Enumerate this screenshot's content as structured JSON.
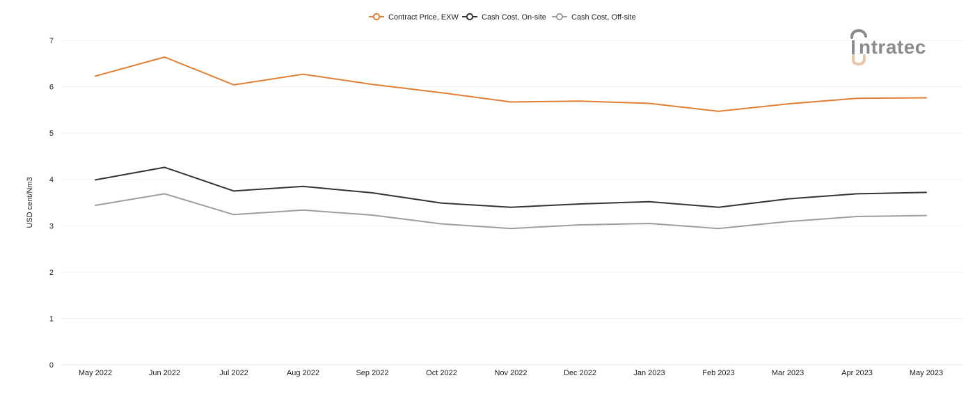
{
  "chart_data": {
    "type": "line",
    "ylabel": "USD cent/Nm3",
    "ylim": [
      0,
      7
    ],
    "yticks": [
      0,
      1,
      2,
      3,
      4,
      5,
      6,
      7
    ],
    "grid": true,
    "legend_position": "top-center",
    "categories": [
      "May 2022",
      "Jun 2022",
      "Jul 2022",
      "Aug 2022",
      "Sep 2022",
      "Oct 2022",
      "Nov 2022",
      "Dec 2022",
      "Jan 2023",
      "Feb 2023",
      "Mar 2023",
      "Apr 2023",
      "May 2023"
    ],
    "series": [
      {
        "name": "Contract Price, EXW",
        "color": "#E07F35",
        "values": [
          6.23,
          6.64,
          6.04,
          6.27,
          6.05,
          5.87,
          5.67,
          5.69,
          5.64,
          5.47,
          5.63,
          5.75,
          5.76
        ]
      },
      {
        "name": "Cash Cost, On-site",
        "color": "#333333",
        "values": [
          3.99,
          4.26,
          3.75,
          3.85,
          3.71,
          3.49,
          3.4,
          3.47,
          3.52,
          3.4,
          3.58,
          3.69,
          3.72
        ]
      },
      {
        "name": "Cash Cost, Off-site",
        "color": "#9E9E9E",
        "values": [
          3.44,
          3.69,
          3.24,
          3.34,
          3.23,
          3.04,
          2.94,
          3.02,
          3.05,
          2.94,
          3.09,
          3.2,
          3.22
        ]
      }
    ]
  },
  "logo": {
    "text": "intratec",
    "color": "#8C8C8C",
    "accent_color": "#E8C7A8"
  }
}
